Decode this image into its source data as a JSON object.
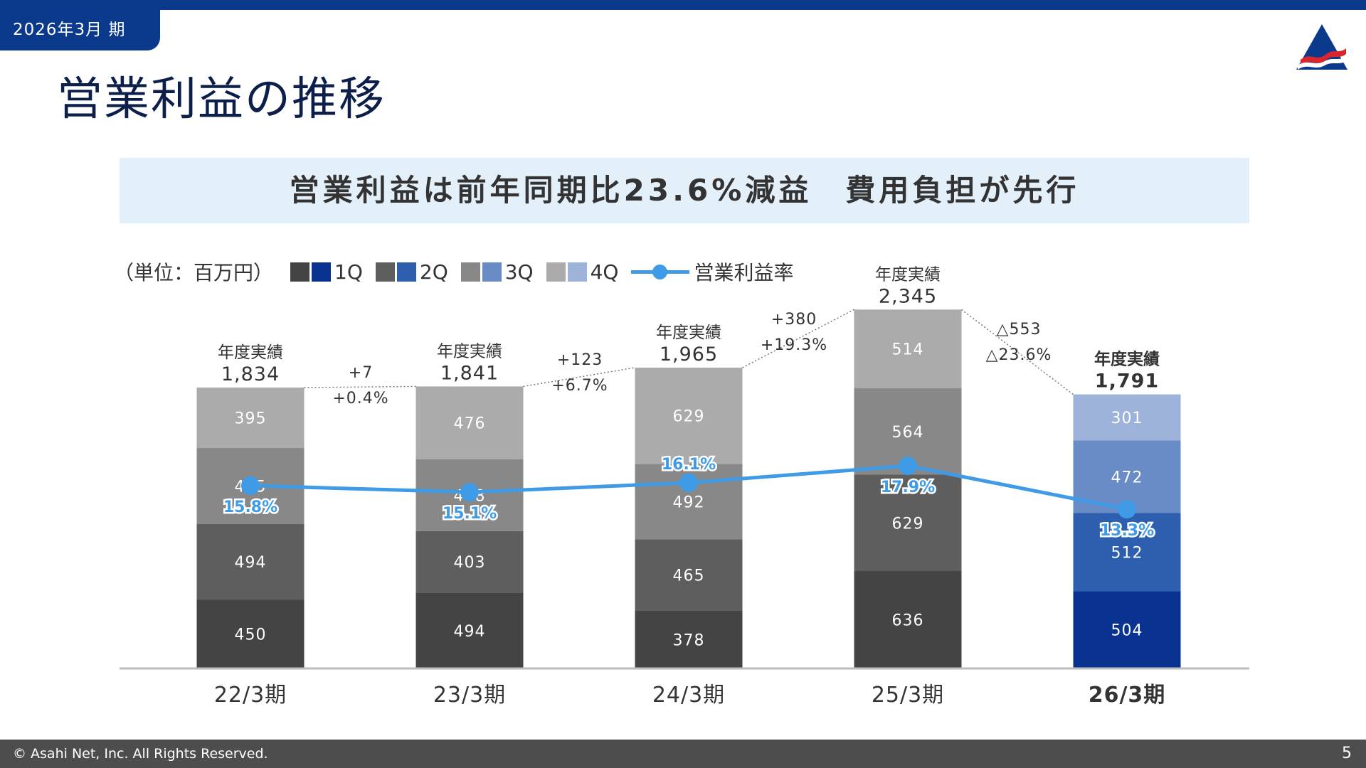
{
  "header": {
    "period_tab": "2026年3月 期",
    "page_title": "営業利益の推移",
    "headline": "営業利益は前年同期比23.6%減益　費用負担が先行"
  },
  "legend": {
    "unit": "（単位：百万円）",
    "items": [
      {
        "label": "1Q",
        "gray": "#444444",
        "blue": "#0a3291"
      },
      {
        "label": "2Q",
        "gray": "#5e5e5e",
        "blue": "#2d5fae"
      },
      {
        "label": "3Q",
        "gray": "#888888",
        "blue": "#6a8cc6"
      },
      {
        "label": "4Q",
        "gray": "#ababab",
        "blue": "#9db3da"
      }
    ],
    "line_label": "営業利益率",
    "line_color": "#3f9be6"
  },
  "chart_data": {
    "type": "bar",
    "stacked": true,
    "categories": [
      "22/3期",
      "23/3期",
      "24/3期",
      "25/3期",
      "26/3期"
    ],
    "highlight_category": "26/3期",
    "series": [
      {
        "name": "1Q",
        "values": [
          450,
          494,
          378,
          636,
          504
        ]
      },
      {
        "name": "2Q",
        "values": [
          494,
          403,
          465,
          629,
          512
        ]
      },
      {
        "name": "3Q",
        "values": [
          495,
          468,
          492,
          564,
          472
        ]
      },
      {
        "name": "4Q",
        "values": [
          395,
          476,
          629,
          514,
          301
        ]
      }
    ],
    "total_label": "年度実績",
    "totals": [
      "1,834",
      "1,841",
      "1,965",
      "2,345",
      "1,791"
    ],
    "line_series": {
      "name": "営業利益率",
      "labels": [
        "15.8%",
        "15.1%",
        "16.1%",
        "17.9%",
        "13.3%"
      ],
      "values": [
        15.8,
        15.1,
        16.1,
        17.9,
        13.3
      ]
    },
    "changes": [
      {
        "abs": "+7",
        "pct": "+0.4%"
      },
      {
        "abs": "+123",
        "pct": "+6.7%"
      },
      {
        "abs": "+380",
        "pct": "+19.3%"
      },
      {
        "abs": "△553",
        "pct": "△23.6%"
      }
    ],
    "ylim": [
      0,
      2600
    ]
  },
  "footer": {
    "copyright": "© Asahi Net, Inc. All Rights Reserved.",
    "page_number": "5"
  }
}
